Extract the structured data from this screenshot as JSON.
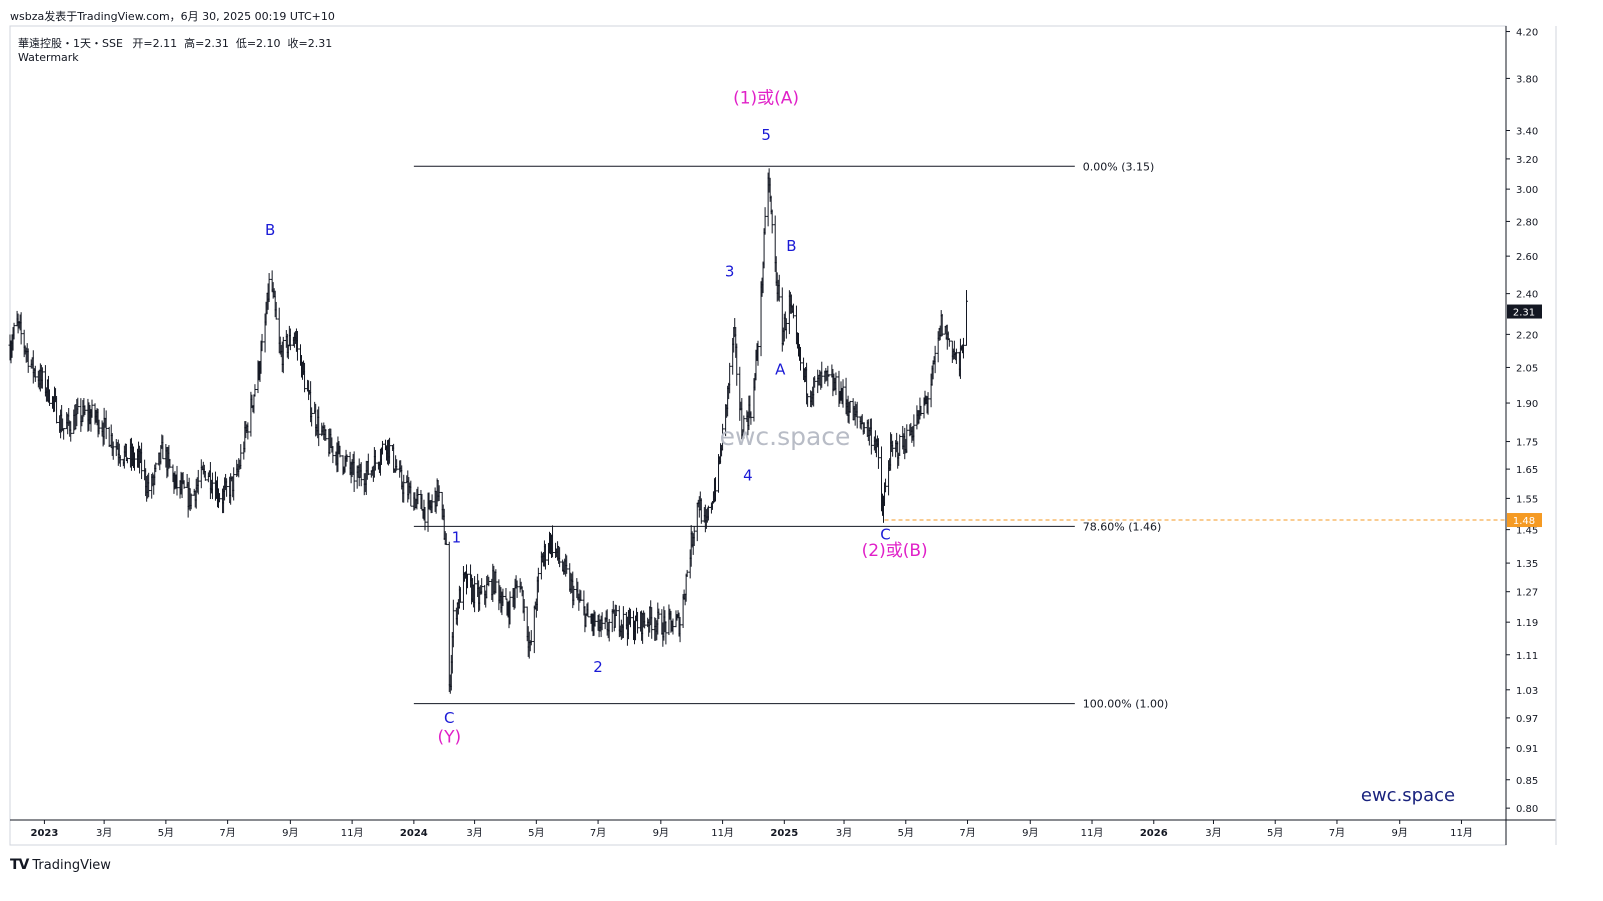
{
  "header": {
    "publish_line": "wsbza发表于TradingView.com，6月 30, 2025 00:19 UTC+10",
    "symbol_line": "華遠控股・1天・SSE",
    "ohlc": "开=2.11  高=2.31  低=2.10  收=2.31",
    "watermark_label": "Watermark"
  },
  "footer": {
    "brand": "TradingView",
    "logo": "TV"
  },
  "colors": {
    "candles": "#131722",
    "wave_blue": "#1a1ad6",
    "wave_magenta": "#e020c8",
    "fib_line": "#131722",
    "last_price_bg": "#131722",
    "level_price_bg": "#f59a23",
    "level_line": "#f59a23",
    "watermark_text": "#b8bcc6",
    "brand_text": "#1a237e"
  },
  "chart_data": {
    "type": "candlestick",
    "instrument": "華遠控股",
    "timeframe": "1天",
    "exchange": "SSE",
    "scale": "log",
    "ylim": [
      0.78,
      4.25
    ],
    "y_ticks": [
      4.2,
      3.8,
      3.4,
      3.2,
      3.0,
      2.8,
      2.6,
      2.4,
      2.2,
      2.05,
      1.9,
      1.75,
      1.65,
      1.55,
      1.45,
      1.35,
      1.27,
      1.19,
      1.11,
      1.03,
      0.97,
      0.91,
      0.85,
      0.8
    ],
    "y_tick_labels": [
      "4.20",
      "3.80",
      "3.40",
      "3.20",
      "3.00",
      "2.80",
      "2.60",
      "2.40",
      "2.20",
      "2.05",
      "1.90",
      "1.75",
      "1.65",
      "1.55",
      "1.45",
      "1.35",
      "1.27",
      "1.19",
      "1.11",
      "1.03",
      "0.97",
      "0.91",
      "0.85",
      "0.80"
    ],
    "x_start": "2022-11-28",
    "x_end": "2026-12-15",
    "x_ticks": [
      {
        "date": "2023-01-01",
        "label": "2023",
        "bold": true
      },
      {
        "date": "2023-03-01",
        "label": "3月"
      },
      {
        "date": "2023-05-01",
        "label": "5月"
      },
      {
        "date": "2023-07-01",
        "label": "7月"
      },
      {
        "date": "2023-09-01",
        "label": "9月"
      },
      {
        "date": "2023-11-01",
        "label": "11月"
      },
      {
        "date": "2024-01-01",
        "label": "2024",
        "bold": true
      },
      {
        "date": "2024-03-01",
        "label": "3月"
      },
      {
        "date": "2024-05-01",
        "label": "5月"
      },
      {
        "date": "2024-07-01",
        "label": "7月"
      },
      {
        "date": "2024-09-01",
        "label": "9月"
      },
      {
        "date": "2024-11-01",
        "label": "11月"
      },
      {
        "date": "2025-01-01",
        "label": "2025",
        "bold": true
      },
      {
        "date": "2025-03-01",
        "label": "3月"
      },
      {
        "date": "2025-05-01",
        "label": "5月"
      },
      {
        "date": "2025-07-01",
        "label": "7月"
      },
      {
        "date": "2025-09-01",
        "label": "9月"
      },
      {
        "date": "2025-11-01",
        "label": "11月"
      },
      {
        "date": "2026-01-01",
        "label": "2026",
        "bold": true
      },
      {
        "date": "2026-03-01",
        "label": "3月"
      },
      {
        "date": "2026-05-01",
        "label": "5月"
      },
      {
        "date": "2026-07-01",
        "label": "7月"
      },
      {
        "date": "2026-09-01",
        "label": "9月"
      },
      {
        "date": "2026-11-01",
        "label": "11月"
      }
    ],
    "price_path": [
      [
        "2022-11-28",
        2.15
      ],
      [
        "2022-12-05",
        2.25
      ],
      [
        "2022-12-20",
        2.05
      ],
      [
        "2023-01-05",
        1.95
      ],
      [
        "2023-01-20",
        1.8
      ],
      [
        "2023-02-05",
        1.85
      ],
      [
        "2023-02-20",
        1.85
      ],
      [
        "2023-03-05",
        1.78
      ],
      [
        "2023-03-20",
        1.7
      ],
      [
        "2023-04-05",
        1.68
      ],
      [
        "2023-04-15",
        1.57
      ],
      [
        "2023-04-28",
        1.72
      ],
      [
        "2023-05-10",
        1.6
      ],
      [
        "2023-05-25",
        1.55
      ],
      [
        "2023-06-10",
        1.65
      ],
      [
        "2023-06-25",
        1.55
      ],
      [
        "2023-07-10",
        1.62
      ],
      [
        "2023-07-25",
        1.9
      ],
      [
        "2023-08-05",
        2.15
      ],
      [
        "2023-08-12",
        2.5
      ],
      [
        "2023-08-22",
        2.1
      ],
      [
        "2023-09-05",
        2.2
      ],
      [
        "2023-09-20",
        1.9
      ],
      [
        "2023-10-05",
        1.75
      ],
      [
        "2023-10-20",
        1.7
      ],
      [
        "2023-11-05",
        1.62
      ],
      [
        "2023-11-20",
        1.65
      ],
      [
        "2023-12-05",
        1.75
      ],
      [
        "2023-12-20",
        1.6
      ],
      [
        "2024-01-01",
        1.55
      ],
      [
        "2024-01-15",
        1.5
      ],
      [
        "2024-01-25",
        1.58
      ],
      [
        "2024-02-02",
        1.4
      ],
      [
        "2024-02-05",
        1.02
      ],
      [
        "2024-02-09",
        1.2
      ],
      [
        "2024-02-20",
        1.3
      ],
      [
        "2024-03-05",
        1.25
      ],
      [
        "2024-03-20",
        1.3
      ],
      [
        "2024-04-02",
        1.22
      ],
      [
        "2024-04-15",
        1.3
      ],
      [
        "2024-04-25",
        1.12
      ],
      [
        "2024-05-05",
        1.35
      ],
      [
        "2024-05-15",
        1.42
      ],
      [
        "2024-05-25",
        1.35
      ],
      [
        "2024-06-05",
        1.28
      ],
      [
        "2024-06-20",
        1.2
      ],
      [
        "2024-07-05",
        1.17
      ],
      [
        "2024-07-20",
        1.2
      ],
      [
        "2024-08-05",
        1.18
      ],
      [
        "2024-08-20",
        1.2
      ],
      [
        "2024-09-05",
        1.18
      ],
      [
        "2024-09-20",
        1.19
      ],
      [
        "2024-09-28",
        1.35
      ],
      [
        "2024-10-08",
        1.55
      ],
      [
        "2024-10-15",
        1.45
      ],
      [
        "2024-10-28",
        1.65
      ],
      [
        "2024-11-05",
        1.9
      ],
      [
        "2024-11-12",
        2.2
      ],
      [
        "2024-11-20",
        1.8
      ],
      [
        "2024-12-01",
        1.9
      ],
      [
        "2024-12-08",
        2.3
      ],
      [
        "2024-12-16",
        3.1
      ],
      [
        "2024-12-22",
        2.6
      ],
      [
        "2024-12-30",
        2.2
      ],
      [
        "2025-01-06",
        2.35
      ],
      [
        "2025-01-15",
        2.1
      ],
      [
        "2025-01-25",
        1.95
      ],
      [
        "2025-02-10",
        2.0
      ],
      [
        "2025-02-25",
        1.95
      ],
      [
        "2025-03-10",
        1.85
      ],
      [
        "2025-03-20",
        1.82
      ],
      [
        "2025-04-02",
        1.75
      ],
      [
        "2025-04-08",
        1.5
      ],
      [
        "2025-04-15",
        1.7
      ],
      [
        "2025-04-30",
        1.75
      ],
      [
        "2025-05-15",
        1.85
      ],
      [
        "2025-05-25",
        1.95
      ],
      [
        "2025-06-05",
        2.25
      ],
      [
        "2025-06-15",
        2.15
      ],
      [
        "2025-06-23",
        2.05
      ],
      [
        "2025-06-30",
        2.31
      ]
    ],
    "last_price": 2.31,
    "last_price_label": "2.31",
    "horizontal_level": {
      "price": 1.48,
      "label": "1.48"
    },
    "fib_levels": [
      {
        "price": 3.15,
        "label": "0.00% (3.15)",
        "start": "2024-01-01",
        "end": "2025-10-15"
      },
      {
        "price": 1.46,
        "label": "78.60% (1.46)",
        "start": "2024-01-01",
        "end": "2025-10-15"
      },
      {
        "price": 1.0,
        "label": "100.00% (1.00)",
        "start": "2024-01-01",
        "end": "2025-10-15"
      }
    ],
    "wave_labels": [
      {
        "text": "B",
        "date": "2023-08-12",
        "price": 2.72,
        "color": "blue"
      },
      {
        "text": "C",
        "date": "2024-02-05",
        "price": 0.96,
        "color": "blue"
      },
      {
        "text": "(Y)",
        "date": "2024-02-05",
        "price": 0.92,
        "color": "magenta"
      },
      {
        "text": "1",
        "date": "2024-02-12",
        "price": 1.41,
        "color": "blue"
      },
      {
        "text": "2",
        "date": "2024-07-01",
        "price": 1.07,
        "color": "blue"
      },
      {
        "text": "3",
        "date": "2024-11-08",
        "price": 2.49,
        "color": "blue"
      },
      {
        "text": "4",
        "date": "2024-11-26",
        "price": 1.61,
        "color": "blue"
      },
      {
        "text": "5",
        "date": "2024-12-14",
        "price": 3.33,
        "color": "blue"
      },
      {
        "text": "(1)或(A)",
        "date": "2024-12-14",
        "price": 3.6,
        "color": "magenta"
      },
      {
        "text": "A",
        "date": "2024-12-28",
        "price": 2.02,
        "color": "blue"
      },
      {
        "text": "B",
        "date": "2025-01-08",
        "price": 2.63,
        "color": "blue"
      },
      {
        "text": "C",
        "date": "2025-04-11",
        "price": 1.42,
        "color": "blue"
      },
      {
        "text": "(2)或(B)",
        "date": "2025-04-20",
        "price": 1.37,
        "color": "magenta"
      }
    ],
    "watermark_text": "ewc.space",
    "brand_text": "ewc.space"
  }
}
